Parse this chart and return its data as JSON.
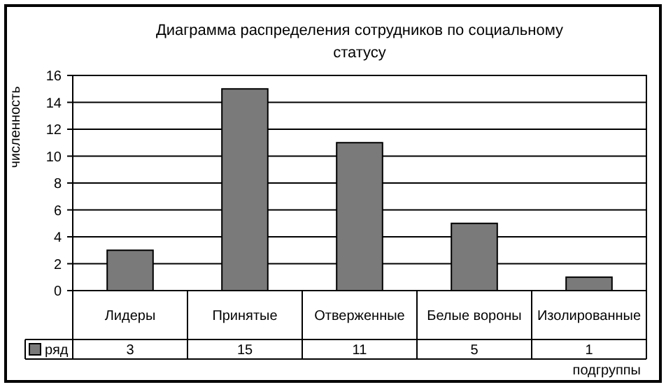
{
  "chart_data": {
    "type": "bar",
    "title": "Диаграмма распределения сотрудников по социальному статусу",
    "xlabel": "подгруппы",
    "ylabel": "численность",
    "categories": [
      "Лидеры",
      "Принятые",
      "Отверженные",
      "Белые вороны",
      "Изолированные"
    ],
    "series": [
      {
        "name": "ряд",
        "color": "#7a7a7a",
        "values": [
          3,
          15,
          11,
          5,
          1
        ]
      }
    ],
    "ylim": [
      0,
      16
    ],
    "yticks": [
      0,
      2,
      4,
      6,
      8,
      10,
      12,
      14,
      16
    ],
    "grid": "y",
    "legend": "bottom left",
    "data_labels": true
  }
}
